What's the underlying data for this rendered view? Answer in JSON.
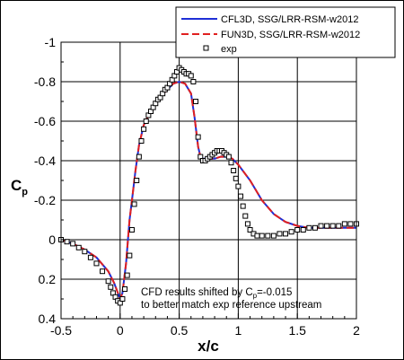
{
  "chart_data": {
    "type": "line",
    "xlabel": "x/c",
    "ylabel": "C",
    "ylabel_subscript": "p",
    "xlim": [
      -0.5,
      2.0
    ],
    "ylim": [
      0.4,
      -1.0
    ],
    "y_inverted": true,
    "grid": true,
    "legend_position": "top-right",
    "x_ticks": [
      "-0.5",
      "0",
      "0.5",
      "1",
      "1.5",
      "2"
    ],
    "y_ticks": [
      "-1",
      "-0.8",
      "-0.6",
      "-0.4",
      "-0.2",
      "0",
      "0.2",
      "0.4"
    ],
    "annotation": {
      "line1_pre": "CFD results shifted by C",
      "line1_sub": "p",
      "line1_post": "=-0.015",
      "line2": "to better match exp reference upstream"
    },
    "series": [
      {
        "name": "CFL3D, SSG/LRR-RSM-w2012",
        "color": "#1f2fd6",
        "style": "solid",
        "x": [
          -0.5,
          -0.4,
          -0.3,
          -0.2,
          -0.1,
          -0.05,
          0.0,
          0.02,
          0.05,
          0.08,
          0.1,
          0.13,
          0.16,
          0.2,
          0.25,
          0.3,
          0.35,
          0.4,
          0.45,
          0.5,
          0.55,
          0.6,
          0.63,
          0.66,
          0.68,
          0.7,
          0.75,
          0.8,
          0.85,
          0.9,
          0.95,
          1.0,
          1.1,
          1.2,
          1.3,
          1.4,
          1.5,
          1.6,
          1.7,
          1.8,
          1.9,
          2.0
        ],
        "y": [
          0.0,
          0.02,
          0.05,
          0.09,
          0.16,
          0.22,
          0.3,
          0.27,
          0.12,
          -0.1,
          -0.2,
          -0.35,
          -0.48,
          -0.58,
          -0.64,
          -0.69,
          -0.73,
          -0.76,
          -0.79,
          -0.8,
          -0.79,
          -0.74,
          -0.62,
          -0.47,
          -0.42,
          -0.41,
          -0.41,
          -0.41,
          -0.42,
          -0.42,
          -0.41,
          -0.38,
          -0.3,
          -0.2,
          -0.13,
          -0.09,
          -0.07,
          -0.06,
          -0.06,
          -0.06,
          -0.06,
          -0.06
        ]
      },
      {
        "name": "FUN3D, SSG/LRR-RSM-w2012",
        "color": "#e02020",
        "style": "dashed",
        "x": [
          -0.5,
          -0.4,
          -0.3,
          -0.2,
          -0.1,
          -0.05,
          0.0,
          0.02,
          0.05,
          0.08,
          0.1,
          0.13,
          0.16,
          0.2,
          0.25,
          0.3,
          0.35,
          0.4,
          0.45,
          0.5,
          0.55,
          0.6,
          0.63,
          0.66,
          0.68,
          0.7,
          0.75,
          0.8,
          0.85,
          0.9,
          0.95,
          1.0,
          1.1,
          1.2,
          1.3,
          1.4,
          1.5,
          1.6,
          1.7,
          1.8,
          1.9,
          2.0
        ],
        "y": [
          0.0,
          0.02,
          0.05,
          0.09,
          0.16,
          0.22,
          0.3,
          0.27,
          0.12,
          -0.1,
          -0.2,
          -0.35,
          -0.48,
          -0.58,
          -0.64,
          -0.69,
          -0.73,
          -0.76,
          -0.79,
          -0.8,
          -0.79,
          -0.74,
          -0.62,
          -0.47,
          -0.42,
          -0.41,
          -0.41,
          -0.41,
          -0.42,
          -0.42,
          -0.41,
          -0.38,
          -0.3,
          -0.2,
          -0.13,
          -0.09,
          -0.07,
          -0.06,
          -0.06,
          -0.06,
          -0.06,
          -0.06
        ]
      },
      {
        "name": "exp",
        "color": "#000000",
        "style": "open-square-markers",
        "x": [
          -0.5,
          -0.45,
          -0.4,
          -0.35,
          -0.3,
          -0.25,
          -0.2,
          -0.15,
          -0.1,
          -0.08,
          -0.06,
          -0.04,
          -0.02,
          0.0,
          0.02,
          0.04,
          0.06,
          0.08,
          0.1,
          0.12,
          0.14,
          0.16,
          0.18,
          0.2,
          0.22,
          0.24,
          0.26,
          0.28,
          0.3,
          0.32,
          0.34,
          0.36,
          0.38,
          0.4,
          0.42,
          0.44,
          0.46,
          0.48,
          0.5,
          0.52,
          0.54,
          0.56,
          0.58,
          0.6,
          0.62,
          0.64,
          0.66,
          0.68,
          0.7,
          0.72,
          0.74,
          0.76,
          0.78,
          0.8,
          0.82,
          0.84,
          0.86,
          0.88,
          0.9,
          0.92,
          0.94,
          0.96,
          0.98,
          1.0,
          1.02,
          1.04,
          1.06,
          1.08,
          1.1,
          1.13,
          1.16,
          1.2,
          1.25,
          1.3,
          1.35,
          1.4,
          1.45,
          1.5,
          1.55,
          1.6,
          1.65,
          1.7,
          1.75,
          1.8,
          1.85,
          1.9,
          1.95,
          2.0
        ],
        "y": [
          0.0,
          0.01,
          0.02,
          0.04,
          0.06,
          0.09,
          0.12,
          0.16,
          0.21,
          0.24,
          0.27,
          0.29,
          0.31,
          0.32,
          0.3,
          0.25,
          0.18,
          0.08,
          -0.05,
          -0.18,
          -0.3,
          -0.42,
          -0.5,
          -0.56,
          -0.6,
          -0.63,
          -0.65,
          -0.67,
          -0.69,
          -0.71,
          -0.72,
          -0.74,
          -0.76,
          -0.77,
          -0.79,
          -0.81,
          -0.83,
          -0.85,
          -0.87,
          -0.86,
          -0.85,
          -0.84,
          -0.84,
          -0.83,
          -0.8,
          -0.7,
          -0.52,
          -0.42,
          -0.4,
          -0.4,
          -0.41,
          -0.42,
          -0.43,
          -0.44,
          -0.45,
          -0.45,
          -0.45,
          -0.44,
          -0.43,
          -0.42,
          -0.39,
          -0.35,
          -0.31,
          -0.27,
          -0.22,
          -0.17,
          -0.12,
          -0.08,
          -0.05,
          -0.03,
          -0.02,
          -0.02,
          -0.02,
          -0.02,
          -0.03,
          -0.03,
          -0.04,
          -0.05,
          -0.05,
          -0.06,
          -0.06,
          -0.07,
          -0.07,
          -0.07,
          -0.07,
          -0.08,
          -0.08,
          -0.08
        ]
      }
    ]
  }
}
